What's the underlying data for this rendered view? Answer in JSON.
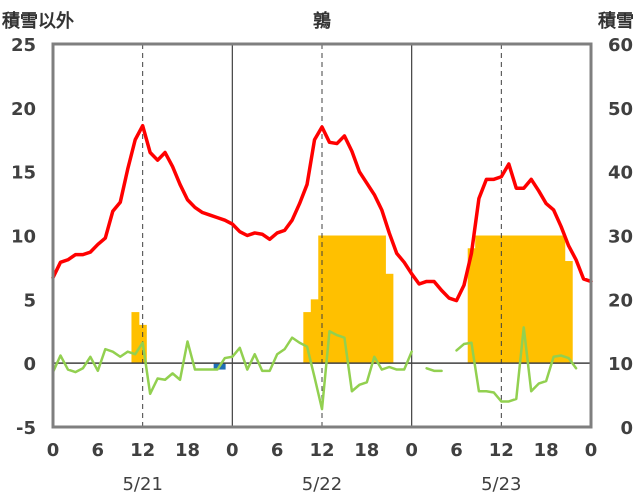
{
  "chart_data": {
    "type": "line+bar",
    "title": "鶉",
    "left_label": "積雪以外",
    "right_label": "積雪",
    "left_axis": {
      "min": -5,
      "max": 25,
      "ticks": [
        "-5",
        "0",
        "5",
        "10",
        "15",
        "20",
        "25"
      ]
    },
    "right_axis": {
      "min": 0,
      "max": 60,
      "ticks": [
        "0",
        "10",
        "20",
        "30",
        "40",
        "50",
        "60"
      ]
    },
    "x_tick_labels": [
      "0",
      "6",
      "12",
      "18",
      "0",
      "6",
      "12",
      "18",
      "0",
      "6",
      "12",
      "18",
      "0"
    ],
    "date_labels": [
      "5/21",
      "5/22",
      "5/23"
    ],
    "hours": 72,
    "colors": {
      "temperature": "#ff0000",
      "wind_line": "#92d050",
      "snow_bar": "#ffc000",
      "negative_bar": "#1f6fb4",
      "axis": "#7f7f7f",
      "day_separator": "#404040",
      "noon_dash": "#404040"
    },
    "series": [
      {
        "key": "temperature",
        "axis": "left",
        "values": [
          6.7,
          7.9,
          8.1,
          8.5,
          8.5,
          8.7,
          9.3,
          9.8,
          11.9,
          12.6,
          15.2,
          17.5,
          18.6,
          16.5,
          15.9,
          16.5,
          15.4,
          14.0,
          12.8,
          12.2,
          11.8,
          11.6,
          11.4,
          11.2,
          10.9,
          10.3,
          10.0,
          10.2,
          10.1,
          9.7,
          10.2,
          10.4,
          11.2,
          12.5,
          14.0,
          17.5,
          18.5,
          17.3,
          17.2,
          17.8,
          16.6,
          15.0,
          14.1,
          13.2,
          12.0,
          10.2,
          8.6,
          7.9,
          7.0,
          6.2,
          6.4,
          6.4,
          5.7,
          5.1,
          4.9,
          6.1,
          8.6,
          12.9,
          14.4,
          14.4,
          14.6,
          15.6,
          13.7,
          13.7,
          14.4,
          13.5,
          12.5,
          12.0,
          10.7,
          9.2,
          8.1,
          6.6,
          6.4
        ]
      },
      {
        "key": "wind_line",
        "axis": "left",
        "values": [
          -0.7,
          0.6,
          -0.5,
          -0.7,
          -0.4,
          0.5,
          -0.6,
          1.1,
          0.9,
          0.5,
          0.9,
          0.7,
          1.6,
          -2.4,
          -1.2,
          -1.3,
          -0.8,
          -1.3,
          1.7,
          -0.5,
          -0.5,
          -0.5,
          -0.5,
          0.4,
          0.5,
          1.2,
          -0.5,
          0.7,
          -0.6,
          -0.6,
          0.7,
          1.1,
          2.0,
          1.6,
          1.3,
          -1.1,
          -3.6,
          2.5,
          2.2,
          2.0,
          -2.2,
          -1.7,
          -1.5,
          0.5,
          -0.5,
          -0.3,
          -0.5,
          -0.5,
          0.9,
          null,
          -0.4,
          -0.6,
          -0.6,
          null,
          1.0,
          1.5,
          1.6,
          -2.2,
          -2.2,
          -2.3,
          -3.0,
          -3.0,
          -2.8,
          2.8,
          -2.2,
          -1.6,
          -1.4,
          0.5,
          0.6,
          0.4,
          -0.4,
          null,
          null
        ]
      },
      {
        "key": "snow_depth",
        "axis": "right",
        "values": [
          0,
          0,
          0,
          0,
          0,
          0,
          0,
          0,
          0,
          0,
          0,
          18,
          16,
          0,
          0,
          0,
          0,
          0,
          0,
          0,
          0,
          0,
          0,
          0,
          0,
          0,
          0,
          0,
          0,
          0,
          0,
          0,
          0,
          0,
          18,
          20,
          30,
          30,
          30,
          30,
          30,
          30,
          30,
          30,
          30,
          24,
          0,
          0,
          0,
          0,
          0,
          0,
          0,
          0,
          0,
          0,
          28,
          30,
          30,
          30,
          30,
          30,
          30,
          30,
          30,
          30,
          30,
          30,
          30,
          26,
          0,
          0,
          0
        ]
      },
      {
        "key": "negative_marker",
        "axis": "left",
        "values": [
          null,
          null,
          null,
          null,
          null,
          null,
          null,
          null,
          null,
          null,
          null,
          null,
          null,
          null,
          null,
          null,
          null,
          null,
          null,
          null,
          null,
          null,
          -0.5,
          null,
          null,
          null,
          null,
          null,
          null,
          null,
          null,
          null,
          null,
          null,
          null,
          null,
          null,
          null,
          null,
          null,
          null,
          null,
          null,
          null,
          null,
          null,
          null,
          null,
          null,
          null,
          null,
          null,
          null,
          null,
          null,
          null,
          null,
          null,
          null,
          null,
          null,
          null,
          null,
          null,
          null,
          null,
          null,
          null,
          null,
          null,
          null,
          null,
          null
        ]
      }
    ]
  }
}
